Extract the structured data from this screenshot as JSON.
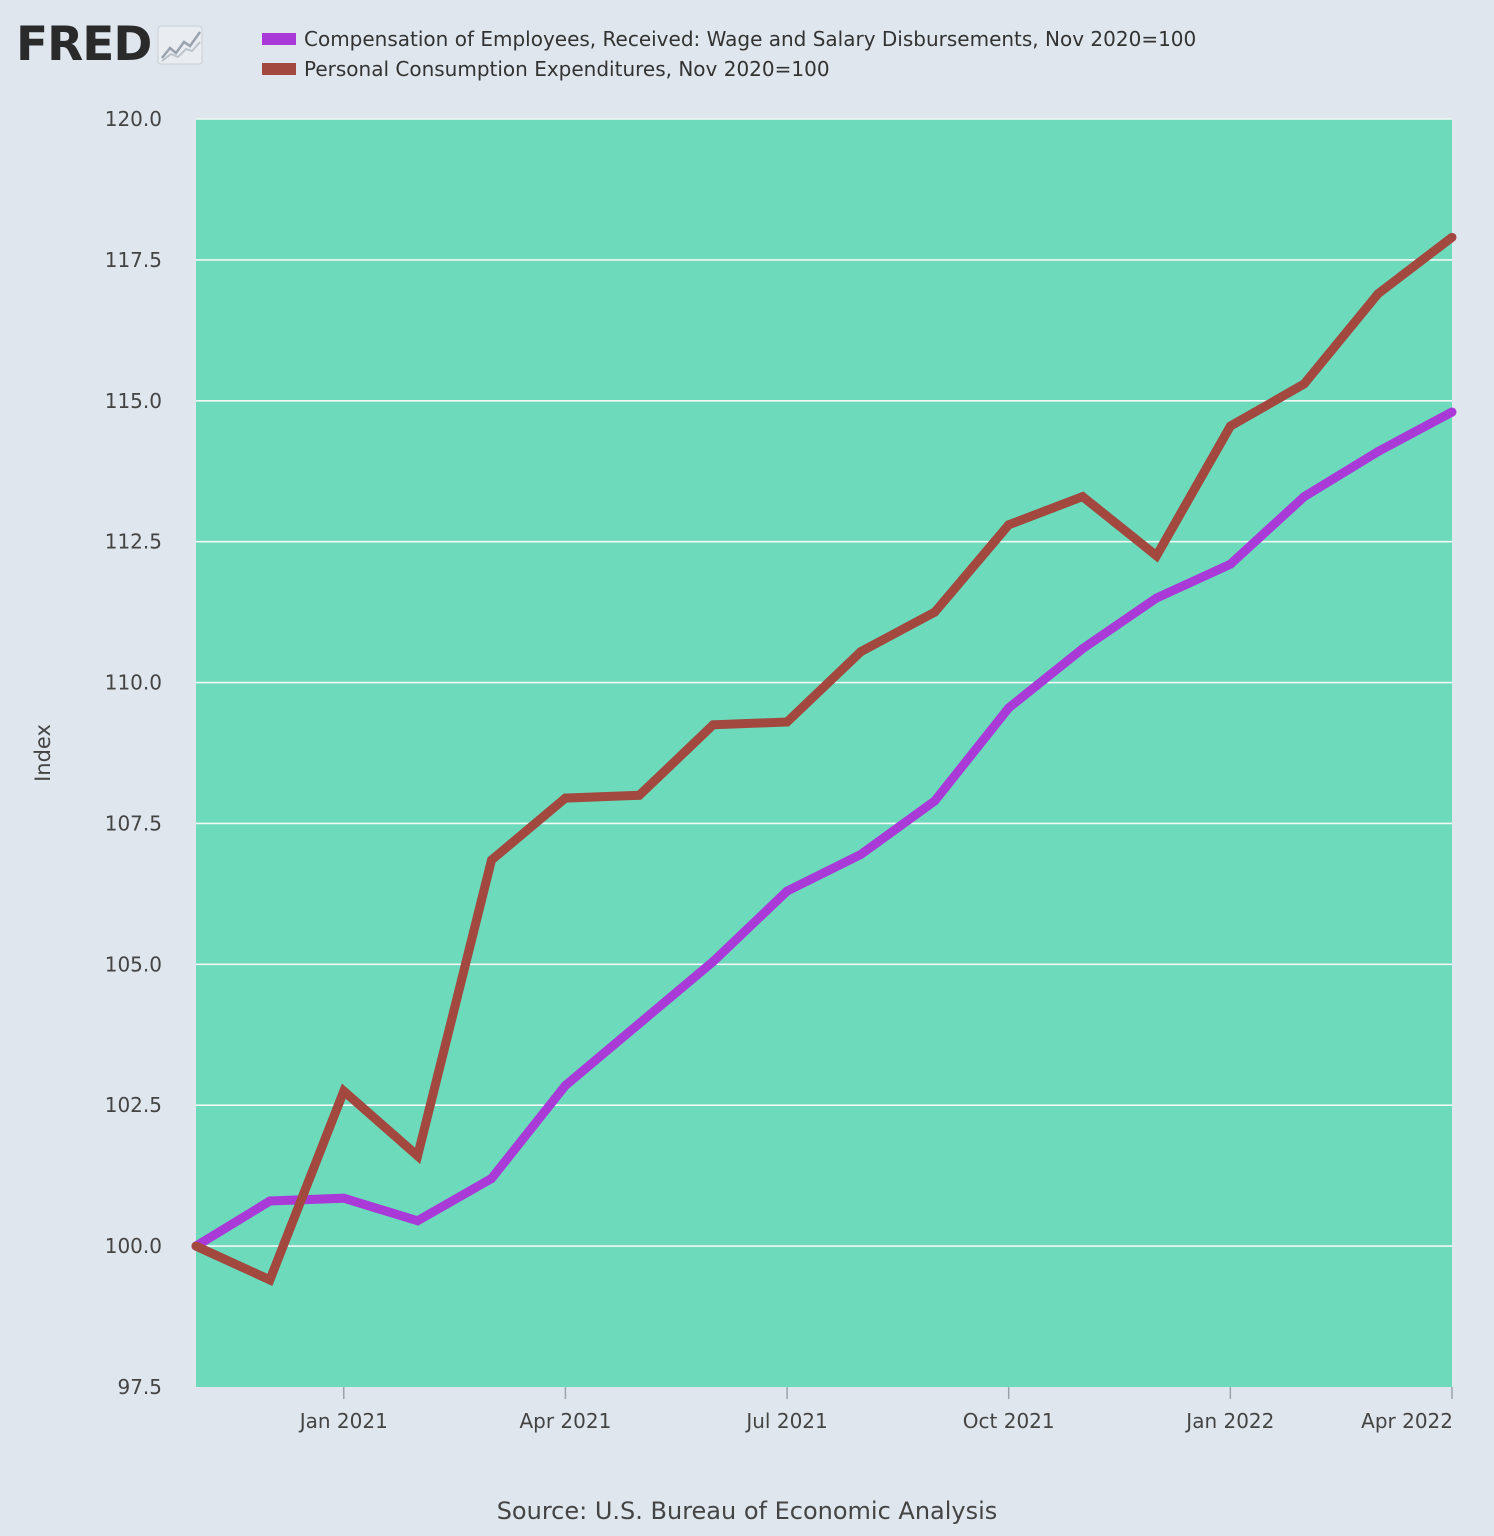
{
  "branding": {
    "logo_text": "FRED"
  },
  "legend": [
    {
      "label": "Compensation of Employees, Received: Wage and Salary Disbursements, Nov 2020=100",
      "color": "#a93ad8"
    },
    {
      "label": "Personal Consumption Expenditures, Nov 2020=100",
      "color": "#a2483f"
    }
  ],
  "footer": {
    "source": "Source: U.S. Bureau of Economic Analysis"
  },
  "colors": {
    "plot_background": "#6ddabb",
    "page_background": "#dfe6ee",
    "gridline": "#f4f8f6"
  },
  "chart_data": {
    "type": "line",
    "title": "",
    "xlabel": "",
    "ylabel": "Index",
    "ylim": [
      97.5,
      120.0
    ],
    "yticks": [
      "97.5",
      "100.0",
      "102.5",
      "105.0",
      "107.5",
      "110.0",
      "112.5",
      "115.0",
      "117.5",
      "120.0"
    ],
    "x": [
      "2020-11",
      "2020-12",
      "2021-01",
      "2021-02",
      "2021-03",
      "2021-04",
      "2021-05",
      "2021-06",
      "2021-07",
      "2021-08",
      "2021-09",
      "2021-10",
      "2021-11",
      "2021-12",
      "2022-01",
      "2022-02",
      "2022-03",
      "2022-04"
    ],
    "xticks": [
      {
        "label": "Jan 2021",
        "index": 2
      },
      {
        "label": "Apr 2021",
        "index": 5
      },
      {
        "label": "Jul 2021",
        "index": 8
      },
      {
        "label": "Oct 2021",
        "index": 11
      },
      {
        "label": "Jan 2022",
        "index": 14
      },
      {
        "label": "Apr 2022",
        "index": 17
      }
    ],
    "grid": true,
    "series": [
      {
        "name": "Compensation of Employees, Received: Wage and Salary Disbursements, Nov 2020=100",
        "color": "#a93ad8",
        "values": [
          100.0,
          100.8,
          100.85,
          100.45,
          101.2,
          102.85,
          103.95,
          105.05,
          106.3,
          106.95,
          107.9,
          109.55,
          110.6,
          111.5,
          112.1,
          113.3,
          114.1,
          114.8
        ]
      },
      {
        "name": "Personal Consumption Expenditures, Nov 2020=100",
        "color": "#a2483f",
        "values": [
          100.0,
          99.4,
          102.75,
          101.6,
          106.85,
          107.95,
          108.0,
          109.25,
          109.3,
          110.55,
          111.25,
          112.8,
          113.3,
          112.25,
          114.55,
          115.3,
          116.9,
          117.9
        ]
      }
    ]
  }
}
